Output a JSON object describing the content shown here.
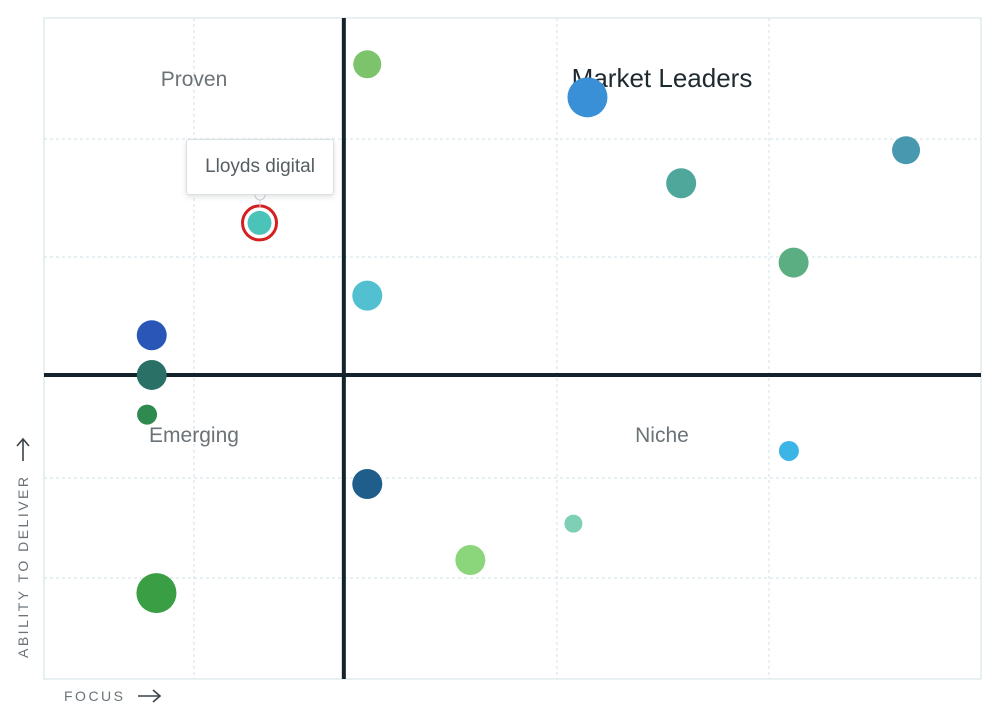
{
  "chart_data": {
    "type": "scatter",
    "quadrants": {
      "top_left": "Proven",
      "top_right": "Market Leaders",
      "bottom_left": "Emerging",
      "bottom_right": "Niche"
    },
    "xlabel": "FOCUS",
    "ylabel": "ABILITY TO DELIVER",
    "xlim": [
      0,
      10
    ],
    "ylim": [
      0,
      10
    ],
    "x_divider": 3.2,
    "y_divider": 4.6,
    "grid": true,
    "tooltip": {
      "text": "Lloyds digital"
    },
    "points": [
      {
        "x": 3.45,
        "y": 9.3,
        "size": 14,
        "color": "#7cc36b"
      },
      {
        "x": 5.8,
        "y": 8.8,
        "size": 20,
        "color": "#3a90d6"
      },
      {
        "x": 9.2,
        "y": 8.0,
        "size": 14,
        "color": "#4898b0"
      },
      {
        "x": 6.8,
        "y": 7.5,
        "size": 15,
        "color": "#4fa69a"
      },
      {
        "x": 2.3,
        "y": 6.9,
        "size": 12,
        "color": "#4bc3b8",
        "highlighted": true
      },
      {
        "x": 8.0,
        "y": 6.3,
        "size": 15,
        "color": "#5aae82"
      },
      {
        "x": 3.45,
        "y": 5.8,
        "size": 15,
        "color": "#53c0d2"
      },
      {
        "x": 1.15,
        "y": 5.2,
        "size": 15,
        "color": "#2a57b7"
      },
      {
        "x": 1.15,
        "y": 4.6,
        "size": 15,
        "color": "#2b7067"
      },
      {
        "x": 1.1,
        "y": 4.0,
        "size": 10,
        "color": "#2f8a50"
      },
      {
        "x": 7.95,
        "y": 3.45,
        "size": 10,
        "color": "#3ab5e6"
      },
      {
        "x": 3.45,
        "y": 2.95,
        "size": 15,
        "color": "#1f5d8a"
      },
      {
        "x": 5.65,
        "y": 2.35,
        "size": 9,
        "color": "#7dd0b5"
      },
      {
        "x": 4.55,
        "y": 1.8,
        "size": 15,
        "color": "#8bd67a"
      },
      {
        "x": 1.2,
        "y": 1.3,
        "size": 20,
        "color": "#3a9e45"
      }
    ],
    "colors": {
      "divider": "#13222b",
      "grid": "#cfe0e4",
      "frame": "#d3e2e6",
      "highlight_ring": "#d42020"
    }
  }
}
